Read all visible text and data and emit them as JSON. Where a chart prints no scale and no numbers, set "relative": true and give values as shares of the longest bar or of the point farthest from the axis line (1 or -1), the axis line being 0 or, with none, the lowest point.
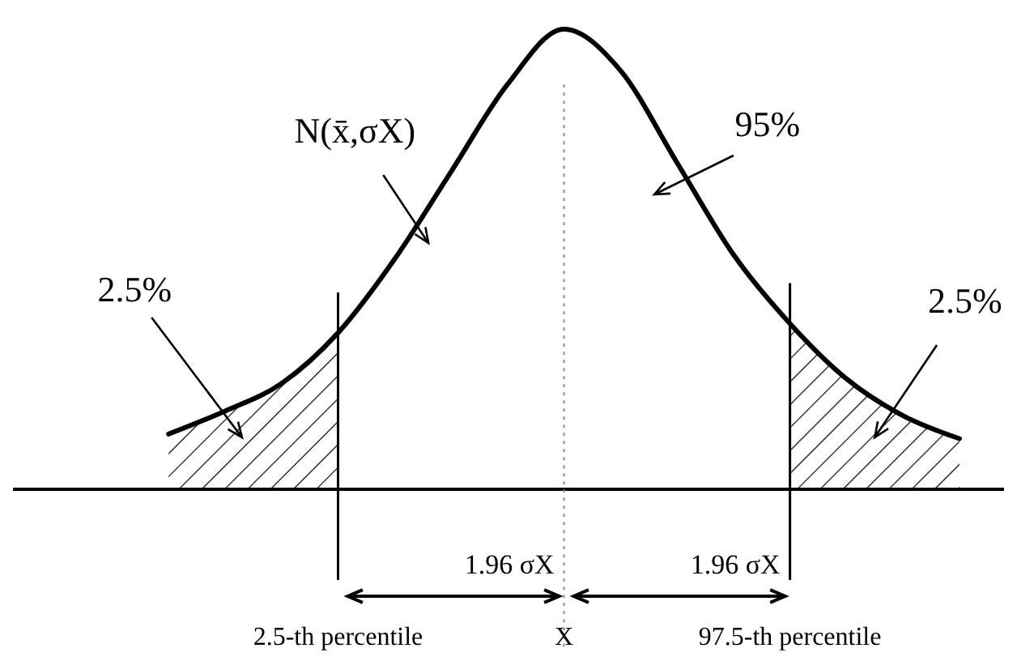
{
  "chart_data": {
    "type": "line",
    "relative": true,
    "categories": [
      null,
      null,
      null,
      "2.5-th percentile",
      null,
      null,
      null,
      "X",
      null,
      null,
      null,
      "97.5-th percentile",
      null,
      null,
      null
    ],
    "series": [
      {
        "color": "#000000",
        "values": [
          0.12,
          0.17,
          0.23,
          0.34,
          0.5,
          0.69,
          0.88,
          1,
          0.91,
          0.71,
          0.51,
          0.36,
          0.24,
          0.16,
          0.11
        ]
      },
      {
        "type": "area",
        "color": "#000000",
        "values": [
          0.12,
          0.17,
          0.23,
          0.34,
          null,
          null,
          null,
          null,
          null,
          null,
          null,
          null,
          null,
          null,
          null
        ]
      },
      {
        "type": "area",
        "color": "#000000",
        "values": [
          null,
          null,
          null,
          null,
          null,
          null,
          null,
          null,
          null,
          null,
          null,
          0.36,
          0.24,
          0.16,
          0.11
        ]
      }
    ],
    "ref_lines": [
      {
        "axis": "x",
        "value": "2.5-th percentile",
        "line_style": "solid"
      },
      {
        "axis": "x",
        "value": "X",
        "line_style": "dotted"
      },
      {
        "axis": "x",
        "value": "97.5-th percentile",
        "line_style": "solid"
      }
    ],
    "annotations": [
      "N(x̄,σX)",
      "95%",
      "2.5%",
      "2.5%",
      "1.96 σX",
      "1.96 σX"
    ]
  }
}
